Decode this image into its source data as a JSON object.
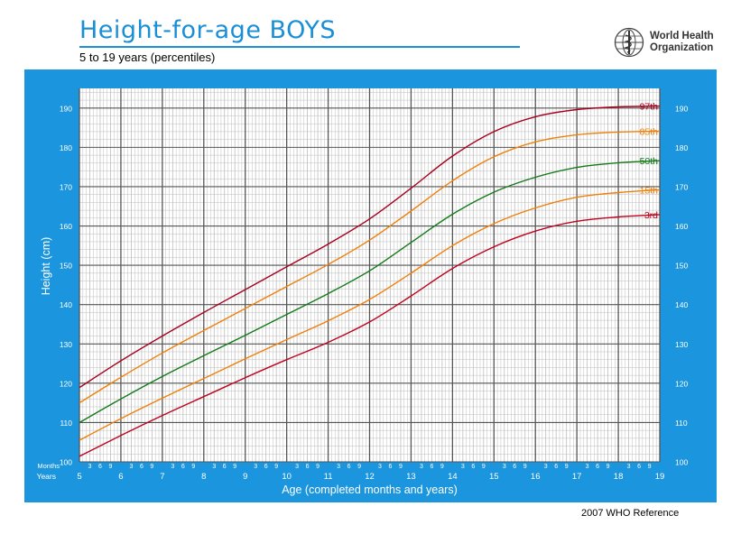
{
  "header": {
    "title": "Height-for-age  BOYS",
    "subtitle": "5 to 19 years (percentiles)"
  },
  "logo": {
    "line1": "World Health",
    "line2": "Organization",
    "icon": "who-emblem-icon"
  },
  "footer": {
    "note": "2007 WHO Reference"
  },
  "chart_data": {
    "type": "line",
    "title": "Height-for-age  BOYS",
    "subtitle": "5 to 19 years (percentiles)",
    "xlabel": "Age (completed months and years)",
    "ylabel": "Height (cm)",
    "xlim": [
      5,
      19
    ],
    "ylim": [
      100,
      195
    ],
    "x_ticks": [
      5,
      6,
      7,
      8,
      9,
      10,
      11,
      12,
      13,
      14,
      15,
      16,
      17,
      18,
      19
    ],
    "y_ticks": [
      100,
      110,
      120,
      130,
      140,
      150,
      160,
      170,
      180,
      190
    ],
    "month_ticks": [
      "3",
      "6",
      "9"
    ],
    "row_labels": {
      "months": "Months",
      "years": "Years"
    },
    "grid": true,
    "colors": {
      "panel": "#1b95dd",
      "plot": "#ffffff",
      "grid_major": "#555555",
      "grid_minor": "#bdbdbd"
    },
    "x": [
      5,
      6,
      7,
      8,
      9,
      10,
      11,
      12,
      13,
      14,
      15,
      16,
      17,
      18,
      19
    ],
    "series": [
      {
        "name": "97th",
        "color": "#a8001c",
        "values": [
          118.9,
          125.7,
          132.0,
          138.0,
          143.8,
          149.6,
          155.4,
          161.8,
          169.6,
          177.8,
          184.0,
          187.8,
          189.6,
          190.3,
          190.5
        ]
      },
      {
        "name": "85th",
        "color": "#f07f09",
        "values": [
          115.0,
          121.5,
          127.7,
          133.4,
          139.0,
          144.6,
          150.2,
          156.4,
          163.8,
          171.5,
          177.6,
          181.4,
          183.2,
          183.9,
          184.1
        ]
      },
      {
        "name": "50th",
        "color": "#127a17",
        "values": [
          110.0,
          116.0,
          121.7,
          127.0,
          132.2,
          137.5,
          142.8,
          148.6,
          155.8,
          163.0,
          168.6,
          172.4,
          174.9,
          176.1,
          176.6
        ]
      },
      {
        "name": "15th",
        "color": "#f07f09",
        "values": [
          105.5,
          111.0,
          116.2,
          121.2,
          126.2,
          131.1,
          135.9,
          141.3,
          148.0,
          155.0,
          160.6,
          164.6,
          167.3,
          168.5,
          169.2
        ]
      },
      {
        "name": "3rd",
        "color": "#c0001c",
        "values": [
          101.4,
          106.7,
          111.8,
          116.6,
          121.4,
          126.0,
          130.4,
          135.6,
          142.2,
          149.2,
          154.7,
          158.7,
          161.2,
          162.3,
          162.9
        ]
      }
    ]
  }
}
